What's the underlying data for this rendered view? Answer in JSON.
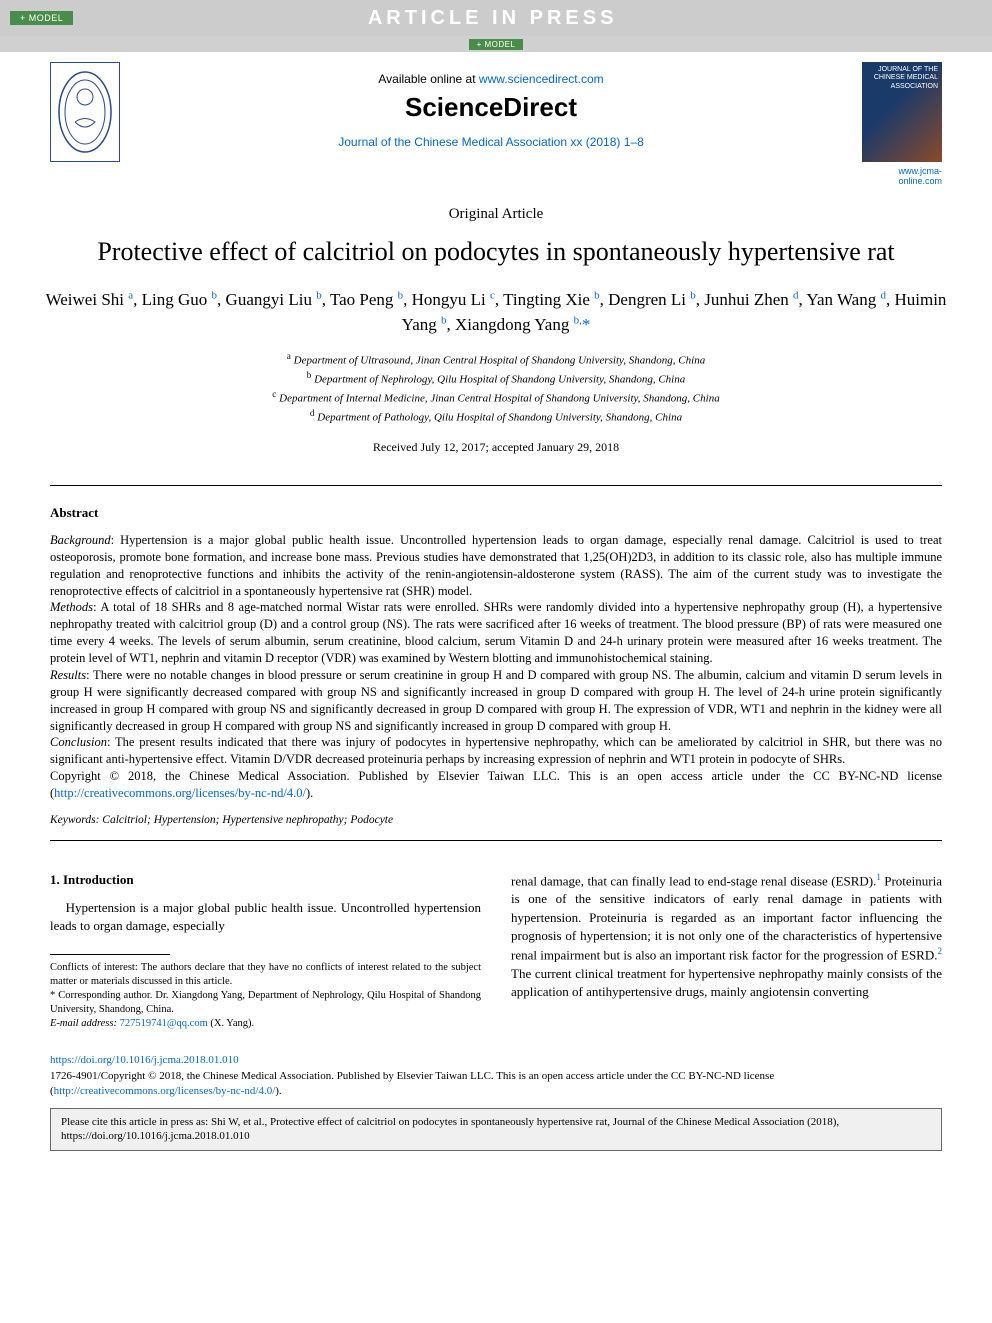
{
  "header": {
    "model_badge": "+ MODEL",
    "article_in_press": "ARTICLE IN PRESS",
    "available_text": "Available online at ",
    "available_url": "www.sciencedirect.com",
    "sciencedirect_logo": "ScienceDirect",
    "journal_citation": "Journal of the Chinese Medical Association xx (2018) 1–8",
    "cover_title": "JOURNAL OF THE CHINESE MEDICAL ASSOCIATION",
    "jcma_url": "www.jcma-online.com"
  },
  "article": {
    "type": "Original Article",
    "title": "Protective effect of calcitriol on podocytes in spontaneously hypertensive rat",
    "authors_html": "Weiwei Shi <sup>a</sup>, Ling Guo <sup>b</sup>, Guangyi Liu <sup>b</sup>, Tao Peng <sup>b</sup>, Hongyu Li <sup>c</sup>, Tingting Xie <sup>b</sup>, Dengren Li <sup>b</sup>, Junhui Zhen <sup>d</sup>, Yan Wang <sup>d</sup>, Huimin Yang <sup>b</sup>, Xiangdong Yang <sup>b,</sup><span class='corresp'>*</span>",
    "affiliations": {
      "a": "Department of Ultrasound, Jinan Central Hospital of Shandong University, Shandong, China",
      "b": "Department of Nephrology, Qilu Hospital of Shandong University, Shandong, China",
      "c": "Department of Internal Medicine, Jinan Central Hospital of Shandong University, Shandong, China",
      "d": "Department of Pathology, Qilu Hospital of Shandong University, Shandong, China"
    },
    "dates": "Received July 12, 2017; accepted January 29, 2018"
  },
  "abstract": {
    "heading": "Abstract",
    "background_label": "Background",
    "background": ": Hypertension is a major global public health issue. Uncontrolled hypertension leads to organ damage, especially renal damage. Calcitriol is used to treat osteoporosis, promote bone formation, and increase bone mass. Previous studies have demonstrated that 1,25(OH)2D3, in addition to its classic role, also has multiple immune regulation and renoprotective functions and inhibits the activity of the renin-angiotensin-aldosterone system (RASS). The aim of the current study was to investigate the renoprotective effects of calcitriol in a spontaneously hypertensive rat (SHR) model.",
    "methods_label": "Methods",
    "methods": ": A total of 18 SHRs and 8 age-matched normal Wistar rats were enrolled. SHRs were randomly divided into a hypertensive nephropathy group (H), a hypertensive nephropathy treated with calcitriol group (D) and a control group (NS). The rats were sacrificed after 16 weeks of treatment. The blood pressure (BP) of rats were measured one time every 4 weeks. The levels of serum albumin, serum creatinine, blood calcium, serum Vitamin D and 24-h urinary protein were measured after 16 weeks treatment. The protein level of WT1, nephrin and vitamin D receptor (VDR) was examined by Western blotting and immunohistochemical staining.",
    "results_label": "Results",
    "results": ": There were no notable changes in blood pressure or serum creatinine in group H and D compared with group NS. The albumin, calcium and vitamin D serum levels in group H were significantly decreased compared with group NS and significantly increased in group D compared with group H. The level of 24-h urine protein significantly increased in group H compared with group NS and significantly decreased in group D compared with group H. The expression of VDR, WT1 and nephrin in the kidney were all significantly decreased in group H compared with group NS and significantly increased in group D compared with group H.",
    "conclusion_label": "Conclusion",
    "conclusion": ": The present results indicated that there was injury of podocytes in hypertensive nephropathy, which can be ameliorated by calcitriol in SHR, but there was no significant anti-hypertensive effect. Vitamin D/VDR decreased proteinuria perhaps by increasing expression of nephrin and WT1 protein in podocyte of SHRs.",
    "copyright": "Copyright © 2018, the Chinese Medical Association. Published by Elsevier Taiwan LLC. This is an open access article under the CC BY-NC-ND license (",
    "license_url": "http://creativecommons.org/licenses/by-nc-nd/4.0/",
    "copyright_end": ").",
    "keywords_label": "Keywords:",
    "keywords": " Calcitriol; Hypertension; Hypertensive nephropathy; Podocyte"
  },
  "body": {
    "intro_heading": "1. Introduction",
    "intro_p1": "Hypertension is a major global public health issue. Uncontrolled hypertension leads to organ damage, especially",
    "intro_p2_pre": "renal damage, that can finally lead to end-stage renal disease (ESRD).",
    "intro_p2_ref1": "1",
    "intro_p2_mid": " Proteinuria is one of the sensitive indicators of early renal damage in patients with hypertension. Proteinuria is regarded as an important factor influencing the prognosis of hypertension; it is not only one of the characteristics of hypertensive renal impairment but is also an important risk factor for the progression of ESRD.",
    "intro_p2_ref2": "2",
    "intro_p2_post": " The current clinical treatment for hypertensive nephropathy mainly consists of the application of antihypertensive drugs, mainly angiotensin converting"
  },
  "footnotes": {
    "coi": "Conflicts of interest: The authors declare that they have no conflicts of interest related to the subject matter or materials discussed in this article.",
    "corresp": "* Corresponding author. Dr. Xiangdong Yang, Department of Nephrology, Qilu Hospital of Shandong University, Shandong, China.",
    "email_label": "E-mail address: ",
    "email": "727519741@qq.com",
    "email_name": " (X. Yang)."
  },
  "footer": {
    "doi": "https://doi.org/10.1016/j.jcma.2018.01.010",
    "issn_line": "1726-4901/Copyright © 2018, the Chinese Medical Association. Published by Elsevier Taiwan LLC. This is an open access article under the CC BY-NC-ND license (",
    "license_url": "http://creativecommons.org/licenses/by-nc-nd/4.0/",
    "issn_end": ").",
    "cite_box": "Please cite this article in press as: Shi W, et al., Protective effect of calcitriol on podocytes in spontaneously hypertensive rat, Journal of the Chinese Medical Association (2018), https://doi.org/10.1016/j.jcma.2018.01.010"
  },
  "colors": {
    "link": "#0066cc",
    "badge_bg": "#4a8c4a",
    "bar_bg": "#cccccc",
    "cite_bg": "#f0f0f0"
  }
}
